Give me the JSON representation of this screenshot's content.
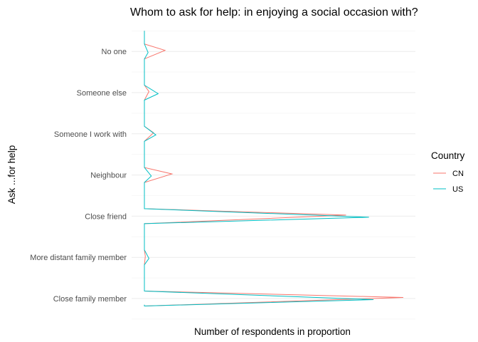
{
  "chart_data": {
    "type": "line",
    "title": "Whom to ask for help: in enjoying a social occasion with?",
    "xlabel": "Number of respondents in proportion",
    "ylabel": "Ask ...for help",
    "categories": [
      "Close family member",
      "More distant family member",
      "Close friend",
      "Neighbour",
      "Someone I work with",
      "Someone else",
      "No one"
    ],
    "series": [
      {
        "name": "CN",
        "color": "#F8766D",
        "values": [
          0.565,
          0.002,
          0.44,
          0.06,
          0.02,
          0.01,
          0.045
        ]
      },
      {
        "name": "US",
        "color": "#00BFC4",
        "values": [
          0.5,
          0.01,
          0.49,
          0.015,
          0.025,
          0.03,
          0.008
        ]
      }
    ],
    "xlim": [
      0,
      0.6
    ],
    "grid": true,
    "legend": {
      "title": "Country",
      "position": "right"
    }
  }
}
